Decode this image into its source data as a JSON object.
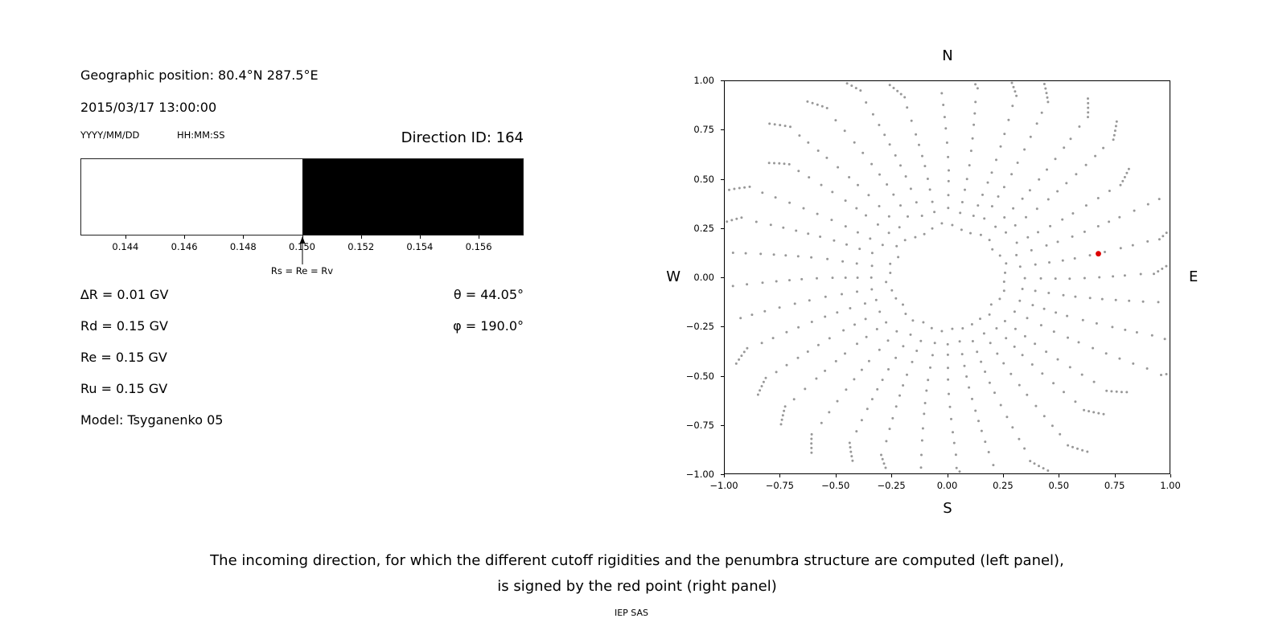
{
  "info": {
    "geo_position": "Geographic position: 80.4°N 287.5°E",
    "datetime": "2015/03/17 13:00:00",
    "date_format": "YYYY/MM/DD",
    "time_format": "HH:MM:SS",
    "direction_id": "Direction ID: 164",
    "params": [
      {
        "label": "∆R = 0.01 GV"
      },
      {
        "label": "Rd = 0.15 GV"
      },
      {
        "label": "Re = 0.15 GV"
      },
      {
        "label": "Ru = 0.15 GV"
      },
      {
        "label": "Model: Tsyganenko 05"
      }
    ],
    "theta": "θ = 44.05°",
    "phi": "φ = 190.0°"
  },
  "chart_data": [
    {
      "type": "bar",
      "title": "",
      "xlabel": "",
      "ylabel": "",
      "xlim": [
        0.1425,
        0.1575
      ],
      "xtick_values": [
        0.144,
        0.146,
        0.148,
        0.15,
        0.152,
        0.154,
        0.156
      ],
      "xticks": [
        "0.144",
        "0.146",
        "0.148",
        "0.150",
        "0.152",
        "0.154",
        "0.156"
      ],
      "segments": [
        {
          "x0": 0.1425,
          "x1": 0.15,
          "color": "#ffffff"
        },
        {
          "x0": 0.15,
          "x1": 0.1575,
          "color": "#000000"
        }
      ],
      "marker": {
        "x": 0.15,
        "label": "Rs = Re = Rv"
      }
    },
    {
      "type": "scatter",
      "title": "",
      "xlim": [
        -1,
        1
      ],
      "ylim": [
        -1,
        1
      ],
      "xtick_values": [
        -1,
        -0.75,
        -0.5,
        -0.25,
        0,
        0.25,
        0.5,
        0.75,
        1
      ],
      "xtick_labels": [
        "−1.00",
        "−0.75",
        "−0.50",
        "−0.25",
        "0.00",
        "0.25",
        "0.50",
        "0.75",
        "1.00"
      ],
      "ytick_values": [
        1,
        0.75,
        0.5,
        0.25,
        0,
        -0.25,
        -0.5,
        -0.75,
        -1
      ],
      "ytick_labels": [
        "1.00",
        "0.75",
        "0.50",
        "0.25",
        "0.00",
        "−0.25",
        "−0.50",
        "−0.75",
        "−1.00"
      ],
      "compass_labels": {
        "top": "N",
        "bottom": "S",
        "left": "W",
        "right": "E"
      },
      "grid": false,
      "legend": false,
      "series": [
        {
          "name": "asymptotic-directions",
          "color": "#989898",
          "marker_size": 1.5,
          "pattern": {
            "kind": "radial-spokes",
            "spoke_count": 36,
            "angle_step_deg": 10,
            "spoke_r_start": 0.33,
            "spoke_r_max": 0.9,
            "dot_spacing": 0.062,
            "tail_dots": 5,
            "tail_spacing": 0.019,
            "curve_rad": 0.1,
            "inner_ring_radius": 0.26,
            "inner_ring_count": 36,
            "seed": 20150317
          }
        },
        {
          "name": "incoming-direction",
          "color": "#dd0000",
          "marker_size": 3.4,
          "points": [
            [
              0.68,
              0.12
            ]
          ]
        }
      ]
    }
  ],
  "caption": {
    "line1": "The incoming direction, for which the different cutoff rigidities and the penumbra structure are computed (left panel),",
    "line2": "is signed by the red point (right panel)"
  },
  "footer": "IEP SAS"
}
